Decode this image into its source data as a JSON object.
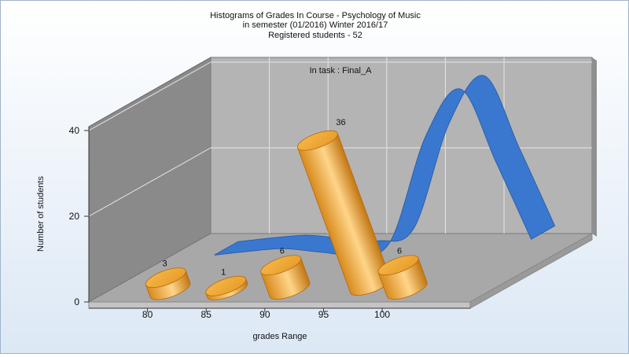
{
  "chart_data": {
    "type": "bar",
    "title_lines": [
      "Histograms of Grades  In Course - Psychology of Music",
      "in semester  (01/2016) Winter 2016/17",
      "Registered students - 52"
    ],
    "annotation": "In task : Final_A",
    "xlabel": "grades Range",
    "ylabel": "Number of students",
    "x_ticks": [
      "80",
      "85",
      "90",
      "95",
      "100"
    ],
    "y_ticks": [
      0,
      20,
      40
    ],
    "ylim": [
      0,
      40
    ],
    "bars": [
      {
        "bin_start": 77.5,
        "value": 3
      },
      {
        "bin_start": 82.5,
        "value": 1
      },
      {
        "bin_start": 87.5,
        "value": 6
      },
      {
        "bin_start": 92.5,
        "value": 36
      },
      {
        "bin_start": 97.5,
        "value": 6
      }
    ],
    "curve": {
      "x": [
        79,
        82,
        85,
        88,
        91,
        94,
        97,
        100,
        103,
        106
      ],
      "y": [
        0.3,
        1.2,
        1.8,
        1,
        0.5,
        3.5,
        28,
        39,
        22,
        4
      ]
    },
    "grid": true,
    "colors": {
      "bar": "#f0a830",
      "curve": "#3a78d0",
      "back_wall": "#b4b4b4",
      "side_wall": "#8a8a8a",
      "floor": "#a8a8a8"
    }
  }
}
